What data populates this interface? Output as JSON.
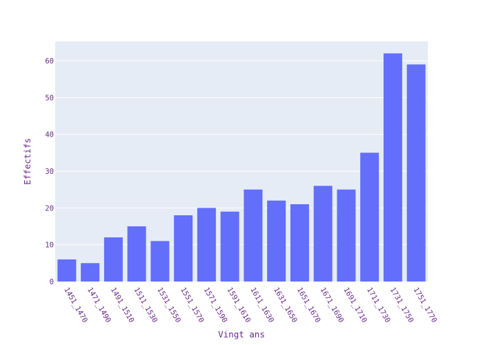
{
  "chart_data": {
    "type": "bar",
    "title": "",
    "xlabel": "Vingt ans",
    "ylabel": "Effectifs",
    "categories": [
      "1451_1470",
      "1471_1490",
      "1491_1510",
      "1511_1530",
      "1531_1550",
      "1551_1570",
      "1571_1590",
      "1591_1610",
      "1611_1630",
      "1631_1650",
      "1651_1670",
      "1671_1690",
      "1691_1710",
      "1711_1730",
      "1731_1750",
      "1751_1770"
    ],
    "values": [
      6,
      5,
      12,
      15,
      11,
      18,
      20,
      19,
      25,
      22,
      21,
      26,
      25,
      35,
      62,
      59
    ],
    "yticks": [
      0,
      10,
      20,
      30,
      40,
      50,
      60
    ],
    "ylim": [
      0,
      65.26
    ],
    "grid": true,
    "legend": "none",
    "colors": {
      "bar": "#636efa",
      "plot_bg": "#e5ecf6",
      "grid": "#ffffff",
      "text": "#6a2a8a"
    }
  }
}
